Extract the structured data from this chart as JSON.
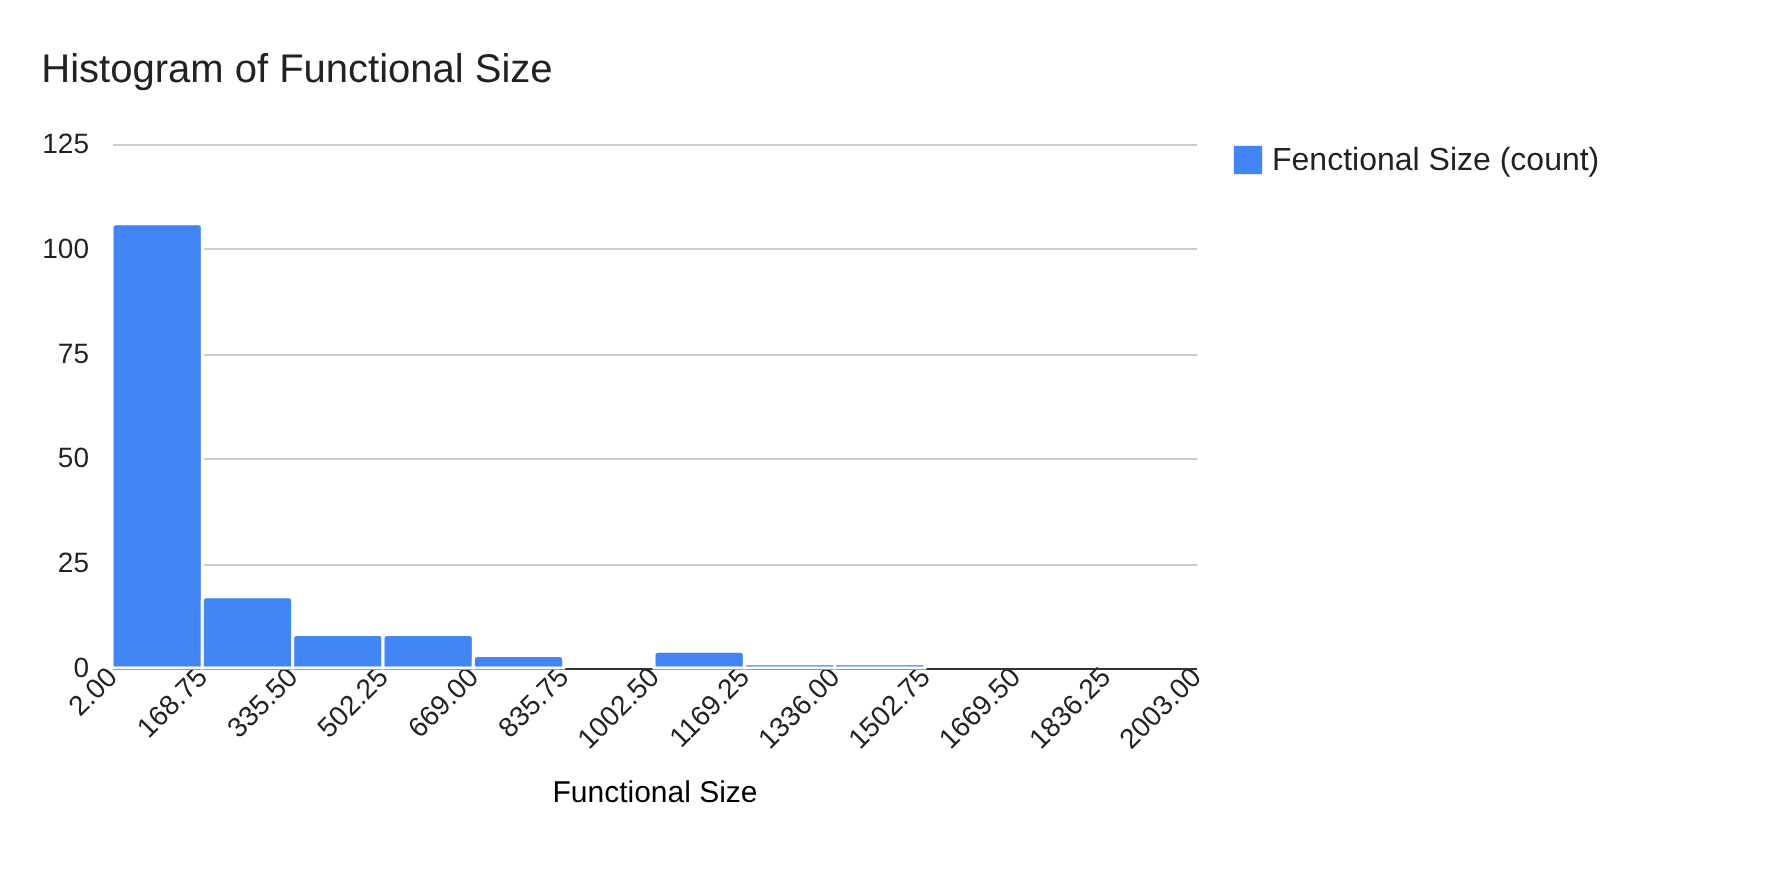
{
  "chart_data": {
    "type": "histogram",
    "title": "Histogram of Functional Size",
    "xlabel": "Functional Size",
    "bins": [
      2.0,
      168.75,
      335.5,
      502.25,
      669.0,
      835.75,
      1002.5,
      1169.25,
      1336.0,
      1502.75,
      1669.5,
      1836.25,
      2003.0
    ],
    "series": [
      {
        "name": "Fenctional Size (count)",
        "color": "#4285f4",
        "values": [
          106,
          17,
          8,
          8,
          3,
          0,
          4,
          1,
          1,
          0,
          0,
          0
        ]
      }
    ],
    "xlim": [
      2.0,
      2003.0
    ],
    "xticks": [
      {
        "value": 2.0,
        "label": "2.00"
      },
      {
        "value": 168.75,
        "label": "168.75"
      },
      {
        "value": 335.5,
        "label": "335.50"
      },
      {
        "value": 502.25,
        "label": "502.25"
      },
      {
        "value": 669.0,
        "label": "669.00"
      },
      {
        "value": 835.75,
        "label": "835.75"
      },
      {
        "value": 1002.5,
        "label": "1002.50"
      },
      {
        "value": 1169.25,
        "label": "1169.25"
      },
      {
        "value": 1336.0,
        "label": "1336.00"
      },
      {
        "value": 1502.75,
        "label": "1502.75"
      },
      {
        "value": 1669.5,
        "label": "1669.50"
      },
      {
        "value": 1836.25,
        "label": "1836.25"
      },
      {
        "value": 2003.0,
        "label": "2003.00"
      }
    ],
    "ylim": [
      0,
      125
    ],
    "yticks": [
      0,
      25,
      50,
      75,
      100,
      125
    ],
    "grid": "y",
    "legend": "top right"
  }
}
